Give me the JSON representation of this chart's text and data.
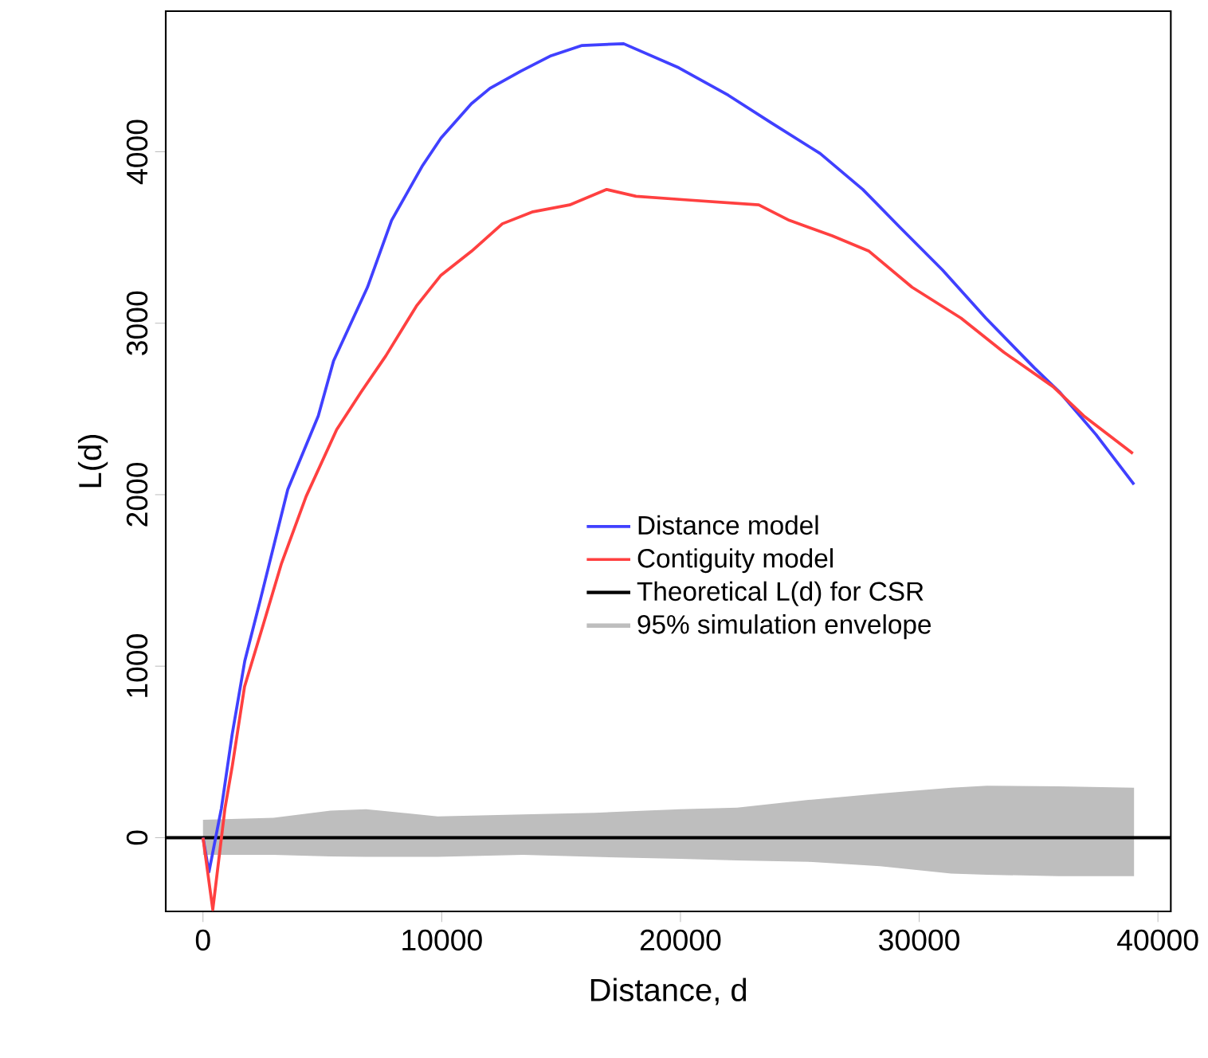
{
  "chart_data": {
    "type": "line",
    "xlabel": "Distance, d",
    "ylabel": "L(d)",
    "xlim": [
      -1560,
      40540
    ],
    "ylim": [
      -430,
      4820
    ],
    "xticks": [
      0,
      10000,
      20000,
      30000,
      40000
    ],
    "yticks": [
      0,
      1000,
      2000,
      3000,
      4000
    ],
    "legend": "center",
    "grid": false,
    "line_style": "solid",
    "marker": "none",
    "series": [
      {
        "name": "Distance model",
        "color": "#4040ff",
        "x": [
          0,
          250,
          770,
          1220,
          1750,
          2390,
          3550,
          4830,
          5470,
          6890,
          7900,
          9200,
          9970,
          11240,
          12020,
          13310,
          14580,
          15880,
          17620,
          19930,
          22000,
          23790,
          25850,
          27640,
          29190,
          30980,
          32790,
          34820,
          35870,
          37410,
          39000
        ],
        "values": [
          0,
          -200,
          170,
          600,
          1030,
          1380,
          2030,
          2460,
          2780,
          3210,
          3600,
          3920,
          4080,
          4280,
          4370,
          4470,
          4560,
          4620,
          4630,
          4490,
          4330,
          4170,
          3990,
          3780,
          3560,
          3310,
          3030,
          2740,
          2600,
          2350,
          2060
        ]
      },
      {
        "name": "Contiguity model",
        "color": "#ff4040",
        "x": [
          0,
          410,
          920,
          1230,
          1740,
          2520,
          3290,
          4320,
          5600,
          6630,
          7660,
          8940,
          9970,
          11250,
          12540,
          13820,
          15360,
          16910,
          18140,
          20190,
          23280,
          24560,
          26360,
          27900,
          29700,
          31750,
          33550,
          35610,
          36890,
          38950
        ],
        "values": [
          0,
          -420,
          170,
          420,
          880,
          1240,
          1600,
          1990,
          2380,
          2600,
          2810,
          3100,
          3280,
          3420,
          3580,
          3650,
          3690,
          3780,
          3740,
          3720,
          3690,
          3600,
          3510,
          3420,
          3210,
          3030,
          2830,
          2630,
          2460,
          2240
        ]
      },
      {
        "name": "95% simulation envelope",
        "type": "area",
        "color": "#bebebe",
        "x": [
          0,
          2950,
          5340,
          6830,
          9830,
          13410,
          16400,
          19990,
          22380,
          25360,
          28360,
          31340,
          32840,
          35830,
          39000
        ],
        "values": [
          null,
          null,
          null,
          null,
          null,
          null,
          null,
          null,
          null,
          null,
          null,
          null,
          null,
          null,
          null
        ],
        "upper": [
          104,
          116,
          158,
          166,
          124,
          136,
          145,
          166,
          175,
          220,
          257,
          291,
          303,
          299,
          291
        ],
        "lower": [
          -100,
          -100,
          -110,
          -112,
          -112,
          -100,
          -112,
          -124,
          -133,
          -141,
          -166,
          -210,
          -216,
          -225,
          -225
        ]
      }
    ],
    "ref_lines": [
      {
        "axis": "y",
        "value": 0,
        "label": "Theoretical L(d) for CSR",
        "color": "#000000"
      }
    ]
  }
}
